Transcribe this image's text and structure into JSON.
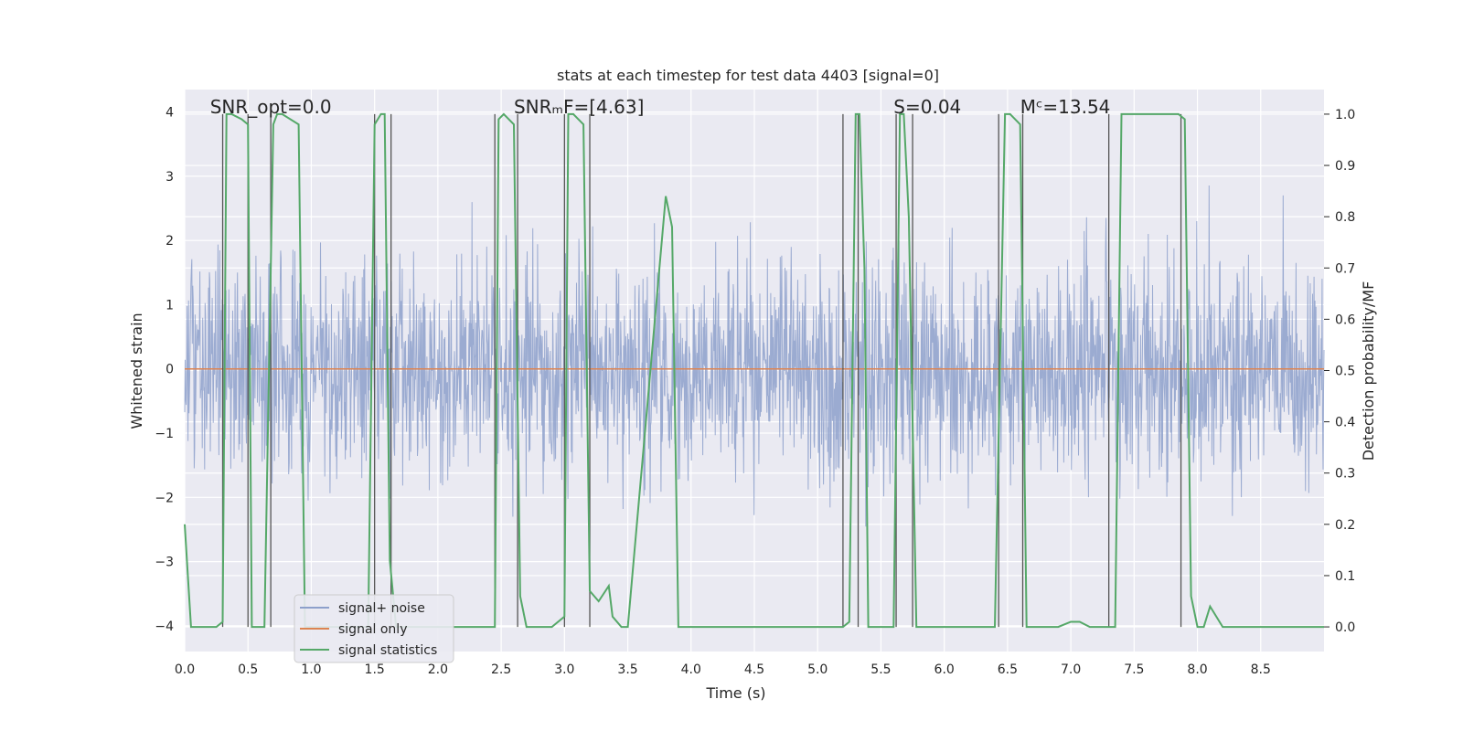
{
  "chart_data": {
    "type": "line",
    "title": "stats at each timestep for test data 4403 [signal=0]",
    "xlabel": "Time (s)",
    "ylabel": "Whitened strain",
    "y2label": "Detection probability/MF",
    "xlim": [
      0.0,
      9.0
    ],
    "ylim": [
      -4.4,
      4.35
    ],
    "y2lim": [
      -0.048,
      1.048
    ],
    "xticks": [
      0.0,
      0.5,
      1.0,
      1.5,
      2.0,
      2.5,
      3.0,
      3.5,
      4.0,
      4.5,
      5.0,
      5.5,
      6.0,
      6.5,
      7.0,
      7.5,
      8.0,
      8.5
    ],
    "xtick_labels": [
      "0.0",
      "0.5",
      "1.0",
      "1.5",
      "2.0",
      "2.5",
      "3.0",
      "3.5",
      "4.0",
      "4.5",
      "5.0",
      "5.5",
      "6.0",
      "6.5",
      "7.0",
      "7.5",
      "8.0",
      "8.5"
    ],
    "yticks": [
      -4,
      -3,
      -2,
      -1,
      0,
      1,
      2,
      3,
      4
    ],
    "ytick_labels": [
      "−4",
      "−3",
      "−2",
      "−1",
      "0",
      "1",
      "2",
      "3",
      "4"
    ],
    "y2ticks": [
      0.0,
      0.1,
      0.2,
      0.3,
      0.4,
      0.5,
      0.6,
      0.7,
      0.8,
      0.9,
      1.0
    ],
    "y2tick_labels": [
      "0.0",
      "0.1",
      "0.2",
      "0.3",
      "0.4",
      "0.5",
      "0.6",
      "0.7",
      "0.8",
      "0.9",
      "1.0"
    ],
    "grid": true,
    "legend_position": "lower-left",
    "annotations": [
      {
        "text": "SNR_opt=0.0",
        "x": 0.2
      },
      {
        "text": "SNRₘF=[4.63]",
        "x": 2.6
      },
      {
        "text": "S=0.04",
        "x": 5.6
      },
      {
        "text": "Mᶜ=13.54",
        "x": 6.6
      }
    ],
    "series": [
      {
        "name": "signal+ noise",
        "axis": "left",
        "color": "#8da0cb",
        "kind": "noise-band",
        "x_range": [
          0.0,
          9.0
        ],
        "typical_range": [
          -2.2,
          2.2
        ],
        "extremes": [
          -4.0,
          4.0
        ]
      },
      {
        "name": "signal only",
        "axis": "left",
        "color": "#dd8452",
        "x": [
          0.0,
          9.0
        ],
        "values": [
          0.0,
          0.0
        ]
      },
      {
        "name": "signal statistics",
        "axis": "right",
        "color": "#55a868",
        "x": [
          0.0,
          0.05,
          0.15,
          0.25,
          0.3,
          0.33,
          0.37,
          0.45,
          0.5,
          0.53,
          0.57,
          0.63,
          0.7,
          0.73,
          0.77,
          0.9,
          0.95,
          0.98,
          1.02,
          1.1,
          1.4,
          1.45,
          1.5,
          1.55,
          1.58,
          1.62,
          1.67,
          1.72,
          1.8,
          2.4,
          2.45,
          2.48,
          2.52,
          2.6,
          2.65,
          2.7,
          2.9,
          3.0,
          3.03,
          3.07,
          3.15,
          3.2,
          3.27,
          3.35,
          3.38,
          3.45,
          3.5,
          3.8,
          3.85,
          3.9,
          3.95,
          4.1,
          4.5,
          5.2,
          5.25,
          5.3,
          5.33,
          5.37,
          5.4,
          5.5,
          5.6,
          5.65,
          5.68,
          5.72,
          5.78,
          5.85,
          6.2,
          6.4,
          6.48,
          6.52,
          6.6,
          6.65,
          6.75,
          6.9,
          7.0,
          7.07,
          7.15,
          7.3,
          7.35,
          7.4,
          7.55,
          7.85,
          7.9,
          7.95,
          8.0,
          8.05,
          8.1,
          8.2,
          8.5,
          9.0
        ],
        "values": [
          0.2,
          0.0,
          0.0,
          0.0,
          0.01,
          1.0,
          1.0,
          0.99,
          0.98,
          0.0,
          0.0,
          0.0,
          0.98,
          1.0,
          1.0,
          0.98,
          0.0,
          0.0,
          0.0,
          0.0,
          0.0,
          0.0,
          0.98,
          1.0,
          1.0,
          0.13,
          0.0,
          0.0,
          0.0,
          0.0,
          0.0,
          0.99,
          1.0,
          0.98,
          0.06,
          0.0,
          0.0,
          0.02,
          1.0,
          1.0,
          0.98,
          0.07,
          0.05,
          0.08,
          0.02,
          0.0,
          0.0,
          0.84,
          0.78,
          0.0,
          0.0,
          0.0,
          0.0,
          0.0,
          0.01,
          1.0,
          1.0,
          0.7,
          0.0,
          0.0,
          0.0,
          1.0,
          1.0,
          0.8,
          0.0,
          0.0,
          0.0,
          0.0,
          1.0,
          1.0,
          0.98,
          0.0,
          0.0,
          0.0,
          0.01,
          0.01,
          0.0,
          0.0,
          0.0,
          1.0,
          1.0,
          1.0,
          0.99,
          0.06,
          0.0,
          0.0,
          0.04,
          0.0,
          0.0,
          0.0
        ]
      }
    ],
    "vertical_markers": [
      0.3,
      0.5,
      0.68,
      1.5,
      1.63,
      2.45,
      2.63,
      3.0,
      3.2,
      5.2,
      5.32,
      5.62,
      5.75,
      6.43,
      6.62,
      7.3,
      7.87
    ]
  }
}
